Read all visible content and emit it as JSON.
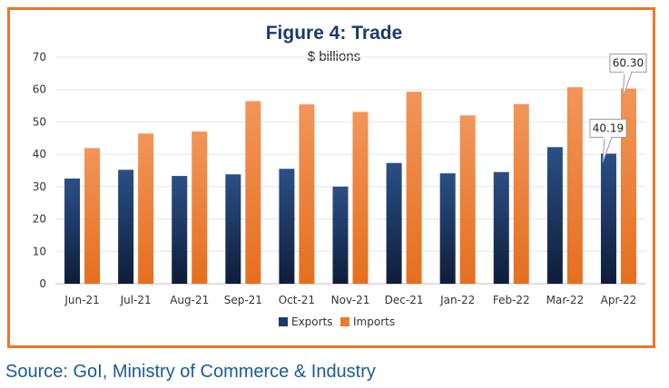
{
  "colors": {
    "exports": "#1B3A6B",
    "imports": "#EE7A2E",
    "border": "#E8782A",
    "title": "#1B3A6B"
  },
  "chart_data": {
    "type": "bar",
    "title": "Figure 4: Trade",
    "subtitle": "$ billions",
    "categories": [
      "Jun-21",
      "Jul-21",
      "Aug-21",
      "Sep-21",
      "Oct-21",
      "Nov-21",
      "Dec-21",
      "Jan-22",
      "Feb-22",
      "Mar-22",
      "Apr-22"
    ],
    "series": [
      {
        "name": "Exports",
        "values": [
          32.5,
          35.2,
          33.3,
          33.8,
          35.5,
          30.0,
          37.3,
          34.1,
          34.5,
          42.2,
          40.19
        ]
      },
      {
        "name": "Imports",
        "values": [
          41.9,
          46.4,
          47.0,
          56.4,
          55.4,
          53.1,
          59.3,
          52.0,
          55.5,
          60.7,
          60.3
        ]
      }
    ],
    "ylim": [
      0,
      70
    ],
    "yticks": [
      0,
      10,
      20,
      30,
      40,
      50,
      60,
      70
    ],
    "grid": true,
    "legend": "bottom-center",
    "annotations": [
      {
        "text": "40.19",
        "series": "Exports",
        "category": "Apr-22"
      },
      {
        "text": "60.30",
        "series": "Imports",
        "category": "Apr-22"
      }
    ]
  },
  "source": "Source: GoI, Ministry of Commerce & Industry"
}
